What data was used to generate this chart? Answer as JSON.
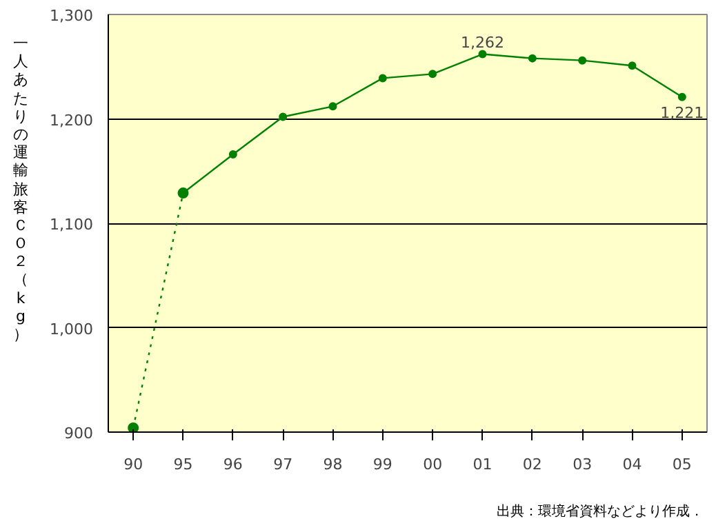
{
  "chart_data": {
    "type": "line",
    "ylabel": "一人あたりの運輸旅客ＣＯ２（kg）",
    "categories": [
      "90",
      "95",
      "96",
      "97",
      "98",
      "99",
      "00",
      "01",
      "02",
      "03",
      "04",
      "05"
    ],
    "series": [
      {
        "color": "#008000",
        "line_style": "dotted",
        "marker": "circle",
        "values": [
          904,
          1129,
          null,
          null,
          null,
          null,
          null,
          null,
          null,
          null,
          null,
          null
        ]
      },
      {
        "color": "#008000",
        "line_style": "solid",
        "marker": "circle",
        "values": [
          null,
          1129,
          1166,
          1202,
          1212,
          1239,
          1243,
          1262,
          1258,
          1256,
          1251,
          1221
        ],
        "value_labels": [
          null,
          null,
          null,
          null,
          null,
          null,
          null,
          "1,262",
          null,
          null,
          null,
          "1,221"
        ]
      }
    ],
    "ylim": [
      900,
      1300
    ],
    "yticks": [
      {
        "value": 900,
        "label": "900"
      },
      {
        "value": 1000,
        "label": "1,000"
      },
      {
        "value": 1100,
        "label": "1,100"
      },
      {
        "value": 1200,
        "label": "1,200"
      },
      {
        "value": 1300,
        "label": "1,300"
      }
    ],
    "grid": "y",
    "annotations": [
      "出典：環境省資料などより作成．"
    ]
  }
}
